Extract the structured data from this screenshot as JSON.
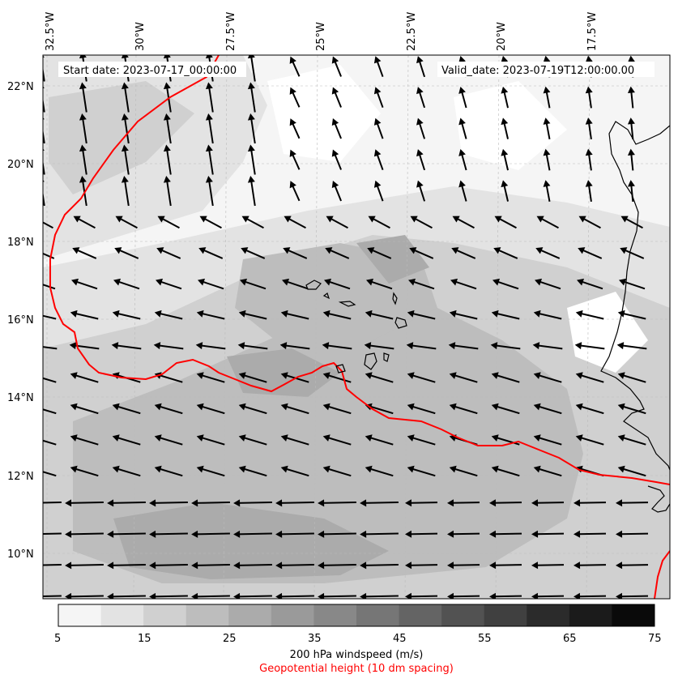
{
  "map": {
    "start_label": "Start date: 2023-07-17_00:00:00",
    "valid_label": "Valid_date: 2023-07-19T12:00:00.00",
    "lon_labels": [
      "32.5°W",
      "30°W",
      "27.5°W",
      "25°W",
      "22.5°W",
      "20°W",
      "17.5°W"
    ],
    "lat_labels": [
      "22°N",
      "20°N",
      "18°N",
      "16°N",
      "14°N",
      "12°N",
      "10°N"
    ],
    "contour_color": "#ff0000",
    "coast_color": "#000000"
  },
  "colorbar": {
    "ticks": [
      "5",
      "15",
      "25",
      "35",
      "45",
      "55",
      "65",
      "75"
    ],
    "colors": [
      "#f5f5f5",
      "#e3e3e3",
      "#d0d0d0",
      "#bdbdbd",
      "#ababab",
      "#9a9a9a",
      "#888888",
      "#767676",
      "#646464",
      "#525252",
      "#404040",
      "#2b2b2b",
      "#1b1b1b",
      "#0a0a0a"
    ],
    "label": "200 hPa windspeed (m/s)",
    "sublabel": "Geopotential height (10 dm spacing)",
    "sublabel_color": "#ff0000"
  }
}
